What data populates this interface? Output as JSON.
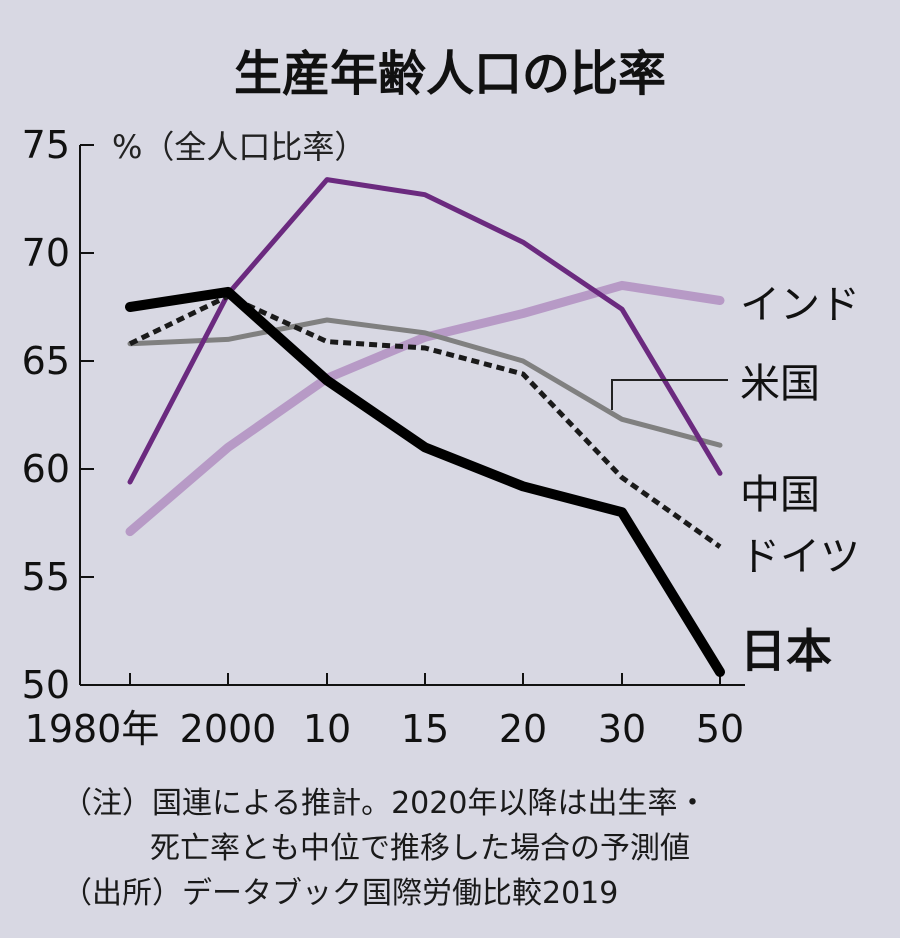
{
  "chart_data": {
    "type": "line",
    "title": "生産年齢人口の比率",
    "ylabel": "%（全人口比率）",
    "xlabel": "",
    "x": [
      "1980年",
      "2000",
      "10",
      "15",
      "20",
      "30",
      "50"
    ],
    "ylim": [
      50,
      75
    ],
    "yticks": [
      "75",
      "70",
      "65",
      "60",
      "55",
      "50"
    ],
    "grid": false,
    "series": [
      {
        "name": "インド",
        "values": [
          57.1,
          61.0,
          64.2,
          66.1,
          67.2,
          68.5,
          67.8
        ],
        "color": "#b79ac6",
        "stroke_width": 9,
        "dash": false
      },
      {
        "name": "米国",
        "values": [
          65.8,
          66.0,
          66.9,
          66.3,
          65.0,
          62.3,
          61.1
        ],
        "color": "#808080",
        "stroke_width": 5,
        "dash": false
      },
      {
        "name": "中国",
        "values": [
          59.4,
          68.1,
          73.4,
          72.7,
          70.5,
          67.4,
          59.8
        ],
        "color": "#6b2a7f",
        "stroke_width": 5,
        "dash": false
      },
      {
        "name": "ドイツ",
        "values": [
          65.8,
          68.0,
          65.9,
          65.6,
          64.4,
          59.6,
          56.4
        ],
        "color": "#1a1a1a",
        "stroke_width": 5,
        "dash": true
      },
      {
        "name": "日本",
        "values": [
          67.5,
          68.2,
          64.1,
          61.0,
          59.2,
          58.0,
          50.6
        ],
        "color": "#000000",
        "stroke_width": 10,
        "dash": false
      }
    ],
    "legend_placement": "right",
    "notes": [
      "（注）国連による推計。2020年以降は出生率・",
      "死亡率とも中位で推移した場合の予測値",
      "（出所）データブック国際労働比較2019"
    ]
  }
}
